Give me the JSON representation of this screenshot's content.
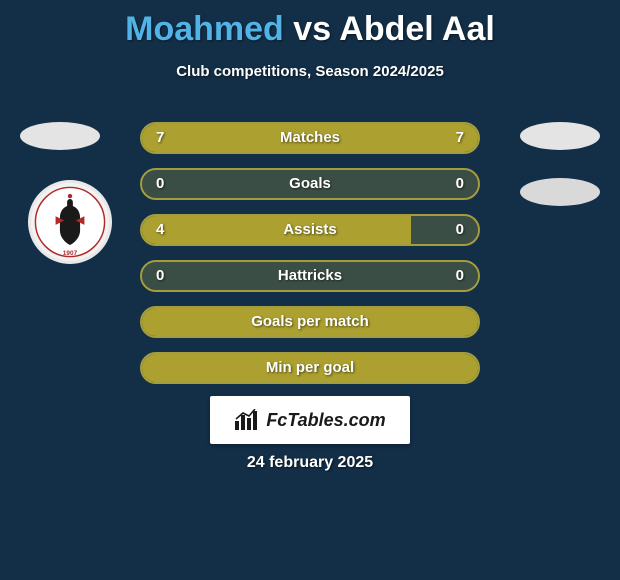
{
  "colors": {
    "background": "#132f48",
    "player1": "#52b3e6",
    "player2": "#ffffff",
    "bar_fill": "#aba030",
    "bar_border": "rgba(180,170,60,0.9)",
    "bar_track": "rgba(180,170,60,0.25)",
    "text": "#ffffff"
  },
  "title": {
    "player1": "Moahmed",
    "vs": "vs",
    "player2": "Abdel Aal"
  },
  "subtitle": "Club competitions, Season 2024/2025",
  "stats": [
    {
      "label": "Matches",
      "left_val": "7",
      "right_val": "7",
      "left_pct": 50,
      "right_pct": 50
    },
    {
      "label": "Goals",
      "left_val": "0",
      "right_val": "0",
      "left_pct": 0,
      "right_pct": 0
    },
    {
      "label": "Assists",
      "left_val": "4",
      "right_val": "0",
      "left_pct": 80,
      "right_pct": 0
    },
    {
      "label": "Hattricks",
      "left_val": "0",
      "right_val": "0",
      "left_pct": 0,
      "right_pct": 0
    },
    {
      "label": "Goals per match",
      "left_val": "",
      "right_val": "",
      "left_pct": 100,
      "right_pct": 0
    },
    {
      "label": "Min per goal",
      "left_val": "",
      "right_val": "",
      "left_pct": 100,
      "right_pct": 0
    }
  ],
  "bar": {
    "height": 32,
    "gap": 14,
    "border_radius": 16,
    "label_fontsize": 15
  },
  "footer": {
    "site_name": "FcTables.com",
    "date": "24 february 2025"
  }
}
